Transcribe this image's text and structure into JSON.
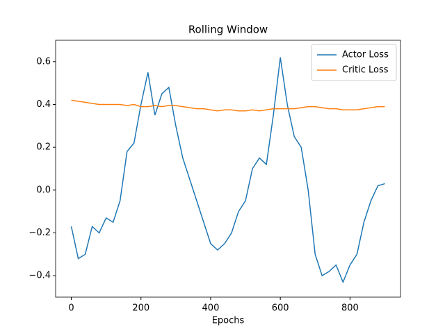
{
  "chart_data": {
    "type": "line",
    "title": "Rolling Window",
    "x_label": "Epochs",
    "x": [
      0,
      20,
      40,
      60,
      80,
      100,
      120,
      140,
      160,
      180,
      200,
      220,
      240,
      260,
      280,
      300,
      320,
      340,
      360,
      380,
      400,
      420,
      440,
      460,
      480,
      500,
      520,
      540,
      560,
      580,
      600,
      620,
      640,
      660,
      680,
      700,
      720,
      740,
      760,
      780,
      800,
      820,
      840,
      860,
      880,
      900
    ],
    "series": [
      {
        "name": "Actor Loss",
        "color": "#1f77b4",
        "values": [
          -0.17,
          -0.32,
          -0.3,
          -0.17,
          -0.2,
          -0.13,
          -0.15,
          -0.05,
          0.18,
          0.22,
          0.4,
          0.55,
          0.35,
          0.45,
          0.48,
          0.3,
          0.15,
          0.05,
          -0.05,
          -0.15,
          -0.25,
          -0.28,
          -0.25,
          -0.2,
          -0.1,
          -0.05,
          0.1,
          0.15,
          0.12,
          0.35,
          0.62,
          0.4,
          0.25,
          0.2,
          0.0,
          -0.3,
          -0.4,
          -0.38,
          -0.35,
          -0.43,
          -0.35,
          -0.3,
          -0.15,
          -0.05,
          0.02,
          0.03
        ]
      },
      {
        "name": "Critic Loss",
        "color": "#ff7f0e",
        "values": [
          0.42,
          0.415,
          0.41,
          0.405,
          0.4,
          0.4,
          0.4,
          0.4,
          0.395,
          0.4,
          0.39,
          0.39,
          0.395,
          0.39,
          0.395,
          0.395,
          0.39,
          0.385,
          0.38,
          0.38,
          0.375,
          0.37,
          0.375,
          0.375,
          0.37,
          0.37,
          0.375,
          0.37,
          0.375,
          0.38,
          0.38,
          0.38,
          0.38,
          0.385,
          0.39,
          0.39,
          0.385,
          0.38,
          0.38,
          0.375,
          0.375,
          0.375,
          0.38,
          0.385,
          0.39,
          0.39
        ]
      }
    ],
    "xlim": [
      -45,
      945
    ],
    "ylim": [
      -0.5,
      0.7
    ],
    "xticks": [
      0,
      200,
      400,
      600,
      800
    ],
    "yticks": [
      {
        "value": -0.4,
        "label": "−0.4"
      },
      {
        "value": -0.2,
        "label": "−0.2"
      },
      {
        "value": 0.0,
        "label": "0.0"
      },
      0.2,
      0.4,
      0.6
    ],
    "legend": "upper right"
  }
}
